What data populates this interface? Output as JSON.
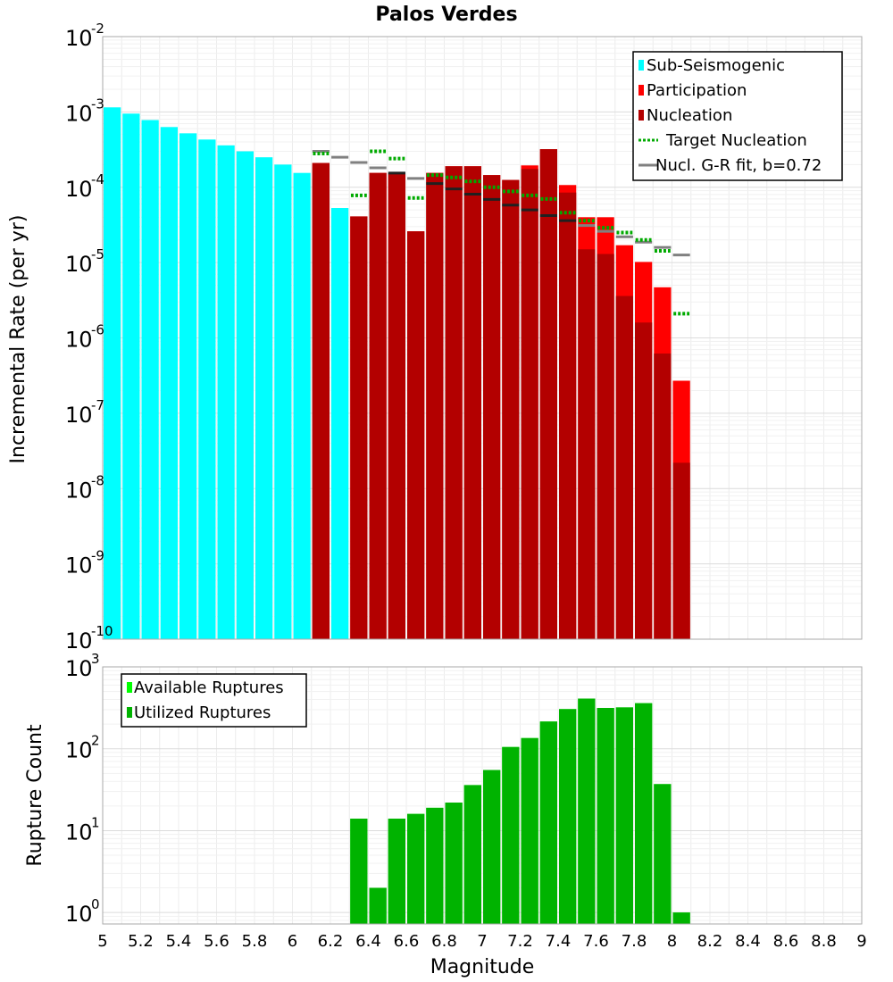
{
  "chart_data": [
    {
      "type": "bar",
      "title": "Palos Verdes",
      "xlabel": "",
      "ylabel": "Incremental Rate (per yr)",
      "yscale": "log",
      "xlim": [
        5,
        9
      ],
      "ylim_exp": [
        -10,
        -2
      ],
      "y_tick_exponents": [
        "-2",
        "-3",
        "-4",
        "-5",
        "-6",
        "-7",
        "-8",
        "-9",
        "-10"
      ],
      "y_tick_base": "10",
      "bin_width": 0.1,
      "colors": {
        "sub_seismogenic": "#00ffff",
        "participation": "#ff0000",
        "nucleation": "#b30000",
        "target": "#00aa00",
        "gr_fit": "#808080"
      },
      "legend": [
        {
          "label": "Sub-Seismogenic",
          "kind": "bar",
          "color": "#00ffff"
        },
        {
          "label": "Participation",
          "kind": "bar",
          "color": "#ff0000"
        },
        {
          "label": "Nucleation",
          "kind": "bar",
          "color": "#b30000"
        },
        {
          "label": "Target Nucleation",
          "kind": "dotted",
          "color": "#00aa00"
        },
        {
          "label": "Nucl. G-R fit, b=0.72",
          "kind": "line",
          "color": "#808080"
        }
      ],
      "series": [
        {
          "name": "Sub-Seismogenic",
          "x": [
            5.05,
            5.15,
            5.25,
            5.35,
            5.45,
            5.55,
            5.65,
            5.75,
            5.85,
            5.95,
            6.05,
            6.15,
            6.25
          ],
          "values": [
            0.00115,
            0.00095,
            0.00078,
            0.00063,
            0.00052,
            0.00043,
            0.00036,
            0.0003,
            0.00025,
            0.0002,
            0.000155,
            0.00013,
            5.3e-05
          ]
        },
        {
          "name": "Participation",
          "x": [
            6.15,
            6.35,
            6.45,
            6.55,
            6.65,
            6.75,
            6.85,
            6.95,
            7.05,
            7.15,
            7.25,
            7.35,
            7.45,
            7.55,
            7.65,
            7.75,
            7.85,
            7.95,
            8.05
          ],
          "values": [
            0.00021,
            4.1e-05,
            0.000155,
            0.000155,
            2.6e-05,
            0.000155,
            0.00019,
            0.00019,
            0.000145,
            0.000125,
            0.000195,
            0.00032,
            0.000107,
            4e-05,
            4e-05,
            1.7e-05,
            1.02e-05,
            4.7e-06,
            2.7e-07
          ]
        },
        {
          "name": "Nucleation",
          "x": [
            6.15,
            6.35,
            6.45,
            6.55,
            6.65,
            6.75,
            6.85,
            6.95,
            7.05,
            7.15,
            7.25,
            7.35,
            7.45,
            7.55,
            7.65,
            7.75,
            7.85,
            7.95,
            8.05
          ],
          "values": [
            0.00021,
            4.1e-05,
            0.000155,
            0.000155,
            2.6e-05,
            0.000155,
            0.00019,
            0.00019,
            0.000145,
            0.000125,
            0.000175,
            0.00032,
            8.5e-05,
            1.5e-05,
            1.3e-05,
            3.6e-06,
            1.6e-06,
            6.2e-07,
            2.2e-08
          ]
        },
        {
          "name": "Target Nucleation",
          "x": [
            6.15,
            6.35,
            6.45,
            6.55,
            6.65,
            6.75,
            6.85,
            6.95,
            7.05,
            7.15,
            7.25,
            7.35,
            7.45,
            7.55,
            7.65,
            7.75,
            7.85,
            7.95,
            8.05
          ],
          "values": [
            0.00028,
            7.8e-05,
            0.0003,
            0.00024,
            7.2e-05,
            0.000145,
            0.000135,
            0.00012,
            0.0001,
            8.8e-05,
            7.8e-05,
            7e-05,
            4.6e-05,
            3.6e-05,
            2.9e-05,
            2.5e-05,
            2e-05,
            1.43e-05,
            2.1e-06
          ]
        },
        {
          "name": "Nucl. G-R fit, b=0.72",
          "x": [
            6.15,
            6.25,
            6.35,
            6.45,
            6.55,
            6.65,
            6.75,
            6.85,
            6.95,
            7.05,
            7.15,
            7.25,
            7.35,
            7.45,
            7.55,
            7.65,
            7.75,
            7.85,
            7.95,
            8.05
          ],
          "values": [
            0.0003,
            0.00025,
            0.000213,
            0.000181,
            0.000154,
            0.000131,
            0.000112,
            9.5e-05,
            8.1e-05,
            6.9e-05,
            5.8e-05,
            5e-05,
            4.2e-05,
            3.6e-05,
            3.1e-05,
            2.6e-05,
            2.2e-05,
            1.87e-05,
            1.59e-05,
            1.26e-05
          ]
        }
      ]
    },
    {
      "type": "bar",
      "title": "",
      "xlabel": "Magnitude",
      "ylabel": "Rupture Count",
      "yscale": "log",
      "xlim": [
        5,
        9
      ],
      "ylim_exp": [
        -0.14,
        3
      ],
      "y_tick_exponents": [
        "3",
        "2",
        "1",
        "0"
      ],
      "y_tick_base": "10",
      "x_ticks": [
        "5",
        "5.2",
        "5.4",
        "5.6",
        "5.8",
        "6",
        "6.2",
        "6.4",
        "6.6",
        "6.8",
        "7",
        "7.2",
        "7.4",
        "7.6",
        "7.8",
        "8",
        "8.2",
        "8.4",
        "8.6",
        "8.8",
        "9"
      ],
      "bin_width": 0.1,
      "colors": {
        "available": "#00ff00",
        "utilized": "#00b300"
      },
      "legend": [
        {
          "label": "Available Ruptures",
          "kind": "bar",
          "color": "#00ff00"
        },
        {
          "label": "Utilized Ruptures",
          "kind": "bar",
          "color": "#00b300"
        }
      ],
      "series": [
        {
          "name": "Available Ruptures",
          "x": [
            6.35,
            6.45,
            6.55,
            6.65,
            6.75,
            6.85,
            6.95,
            7.05,
            7.15,
            7.25,
            7.35,
            7.45,
            7.55,
            7.65,
            7.75,
            7.85,
            7.95,
            8.05
          ],
          "values": [
            14,
            2,
            14,
            16,
            19,
            22,
            36,
            55,
            105,
            135,
            215,
            305,
            410,
            315,
            320,
            360,
            37,
            1
          ]
        },
        {
          "name": "Utilized Ruptures",
          "x": [
            6.35,
            6.45,
            6.55,
            6.65,
            6.75,
            6.85,
            6.95,
            7.05,
            7.15,
            7.25,
            7.35,
            7.45,
            7.55,
            7.65,
            7.75,
            7.85,
            7.95,
            8.05
          ],
          "values": [
            14,
            2,
            14,
            16,
            19,
            22,
            36,
            55,
            105,
            135,
            215,
            305,
            410,
            315,
            320,
            360,
            37,
            1
          ]
        }
      ]
    }
  ]
}
